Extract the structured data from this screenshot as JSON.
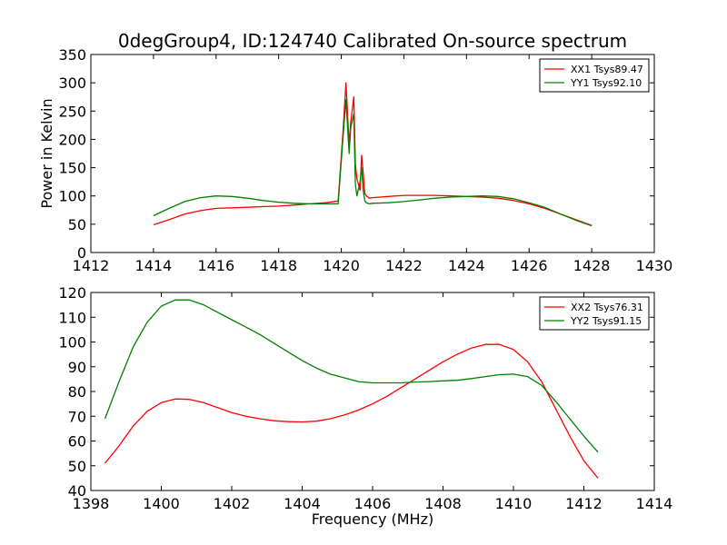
{
  "title": "0degGroup4, ID:124740 Calibrated On-source spectrum",
  "colors": {
    "XX": "#ff0000",
    "YY": "#008000"
  },
  "chart_data": [
    {
      "type": "line",
      "xlabel": "",
      "ylabel": "Power in Kelvin",
      "xlim": [
        1412,
        1430
      ],
      "ylim": [
        0,
        350
      ],
      "xticks": [
        1412,
        1414,
        1416,
        1418,
        1420,
        1422,
        1424,
        1426,
        1428,
        1430
      ],
      "yticks": [
        0,
        50,
        100,
        150,
        200,
        250,
        300,
        350
      ],
      "grid": false,
      "legend_position": "top-right",
      "series": [
        {
          "name": "XX1 Tsys89.47",
          "color": "#ff0000",
          "x": [
            1414.0,
            1414.5,
            1415.0,
            1415.5,
            1416.0,
            1416.5,
            1417.0,
            1417.5,
            1418.0,
            1418.5,
            1419.0,
            1419.5,
            1419.9,
            1420.05,
            1420.15,
            1420.25,
            1420.3,
            1420.4,
            1420.45,
            1420.5,
            1420.6,
            1420.65,
            1420.7,
            1420.75,
            1420.8,
            1420.9,
            1421.0,
            1421.5,
            1422.0,
            1422.5,
            1423.0,
            1423.5,
            1424.0,
            1424.5,
            1425.0,
            1425.5,
            1426.0,
            1426.5,
            1427.0,
            1427.5,
            1428.0
          ],
          "y": [
            49,
            58,
            68,
            74,
            78,
            79,
            80,
            81,
            82,
            84,
            86,
            88,
            91,
            210,
            300,
            190,
            230,
            275,
            155,
            130,
            110,
            172,
            140,
            105,
            100,
            96,
            97,
            99,
            101,
            101,
            101,
            100,
            99,
            98,
            96,
            92,
            86,
            78,
            68,
            58,
            48
          ]
        },
        {
          "name": "YY1 Tsys92.10",
          "color": "#008000",
          "x": [
            1414.0,
            1414.5,
            1415.0,
            1415.5,
            1416.0,
            1416.5,
            1417.0,
            1417.5,
            1418.0,
            1418.5,
            1419.0,
            1419.5,
            1419.9,
            1420.05,
            1420.15,
            1420.25,
            1420.3,
            1420.4,
            1420.45,
            1420.5,
            1420.6,
            1420.65,
            1420.7,
            1420.75,
            1420.8,
            1420.9,
            1421.0,
            1421.5,
            1422.0,
            1422.5,
            1423.0,
            1423.5,
            1424.0,
            1424.5,
            1425.0,
            1425.5,
            1426.0,
            1426.5,
            1427.0,
            1427.5,
            1428.0
          ],
          "y": [
            65,
            78,
            90,
            97,
            100,
            99,
            96,
            92,
            89,
            87,
            86,
            86,
            86,
            200,
            270,
            175,
            220,
            245,
            120,
            100,
            125,
            150,
            110,
            92,
            88,
            86,
            87,
            88,
            90,
            93,
            96,
            98,
            99,
            100,
            99,
            95,
            88,
            80,
            68,
            57,
            47
          ]
        }
      ]
    },
    {
      "type": "line",
      "xlabel": "Frequency (MHz)",
      "ylabel": "",
      "xlim": [
        1398,
        1414
      ],
      "ylim": [
        40,
        120
      ],
      "xticks": [
        1398,
        1400,
        1402,
        1404,
        1406,
        1408,
        1410,
        1412,
        1414
      ],
      "yticks": [
        40,
        50,
        60,
        70,
        80,
        90,
        100,
        110,
        120
      ],
      "grid": false,
      "legend_position": "top-right",
      "series": [
        {
          "name": "XX2 Tsys76.31",
          "color": "#ff0000",
          "x": [
            1398.4,
            1398.8,
            1399.2,
            1399.6,
            1400.0,
            1400.4,
            1400.8,
            1401.2,
            1401.6,
            1402.0,
            1402.4,
            1402.8,
            1403.2,
            1403.6,
            1404.0,
            1404.4,
            1404.8,
            1405.2,
            1405.6,
            1406.0,
            1406.4,
            1406.8,
            1407.2,
            1407.6,
            1408.0,
            1408.4,
            1408.8,
            1409.2,
            1409.6,
            1410.0,
            1410.4,
            1410.8,
            1411.2,
            1411.6,
            1412.0,
            1412.4
          ],
          "y": [
            51,
            58,
            66,
            72,
            75.5,
            77,
            76.8,
            75.5,
            73.5,
            71.5,
            70,
            69,
            68.2,
            67.8,
            67.7,
            68,
            69,
            70.5,
            72.5,
            75,
            78,
            81.5,
            85,
            88.5,
            92,
            95,
            97.5,
            99,
            99,
            97,
            92,
            84,
            73,
            62,
            52,
            45
          ]
        },
        {
          "name": "YY2 Tsys91.15",
          "color": "#008000",
          "x": [
            1398.4,
            1398.8,
            1399.2,
            1399.6,
            1400.0,
            1400.4,
            1400.8,
            1401.2,
            1401.6,
            1402.0,
            1402.4,
            1402.8,
            1403.2,
            1403.6,
            1404.0,
            1404.4,
            1404.8,
            1405.2,
            1405.6,
            1406.0,
            1406.4,
            1406.8,
            1407.2,
            1407.6,
            1408.0,
            1408.4,
            1408.8,
            1409.2,
            1409.6,
            1410.0,
            1410.4,
            1410.8,
            1411.2,
            1411.6,
            1412.0,
            1412.4
          ],
          "y": [
            69,
            84,
            98,
            108,
            114.5,
            117,
            117,
            115,
            112,
            109,
            106,
            103,
            99.5,
            96,
            92.5,
            89.5,
            87,
            85.5,
            84,
            83.5,
            83.5,
            83.5,
            83.8,
            84,
            84.3,
            84.5,
            85.2,
            86,
            86.8,
            87,
            86,
            82.5,
            76,
            69,
            62,
            55.5
          ]
        }
      ]
    }
  ]
}
